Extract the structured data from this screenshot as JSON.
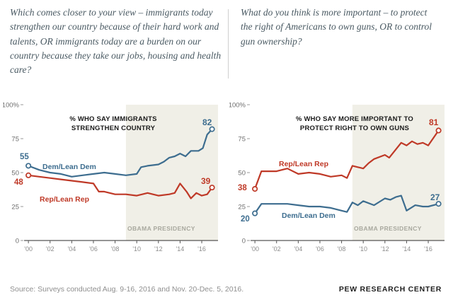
{
  "header": {
    "questions": [
      {
        "text": "Which comes closer to your view – immigrants today strengthen our country because of their hard work and talents, OR immigrants today are a burden on our country because they take our jobs, housing and health care?"
      },
      {
        "text": "What do you think is more important – to protect the right of Americans to own guns, OR to control gun ownership?"
      }
    ]
  },
  "colors": {
    "dem": "#3d6d8f",
    "rep": "#bf3927",
    "shading": "#f0efe7"
  },
  "chart_data": [
    {
      "type": "line",
      "title": "% WHO SAY IMMIGRANTS STRENGTHEN COUNTRY",
      "xlim": [
        1999.6,
        2017.5
      ],
      "ylim": [
        0,
        100
      ],
      "x_ticks": [
        {
          "v": 2000,
          "label": "'00"
        },
        {
          "v": 2002,
          "label": "'02"
        },
        {
          "v": 2004,
          "label": "'04"
        },
        {
          "v": 2006,
          "label": "'06"
        },
        {
          "v": 2008,
          "label": "'08"
        },
        {
          "v": 2010,
          "label": "'10"
        },
        {
          "v": 2012,
          "label": "'12"
        },
        {
          "v": 2014,
          "label": "'14"
        },
        {
          "v": 2016,
          "label": "'16"
        }
      ],
      "y_ticks": [
        {
          "v": 0,
          "label": "0"
        },
        {
          "v": 25,
          "label": "25"
        },
        {
          "v": 50,
          "label": "50"
        },
        {
          "v": 75,
          "label": "75"
        },
        {
          "v": 100,
          "label": "100%"
        }
      ],
      "shaded_region": {
        "label": "OBAMA PRESIDENCY",
        "start": 2009,
        "end": 2017.5
      },
      "grid": false,
      "legend_position": "inline",
      "series": [
        {
          "name": "Dem/Lean Dem",
          "color": "#3d6d8f",
          "start_label": "55",
          "end_label": "82",
          "points": [
            [
              2000,
              55
            ],
            [
              2001,
              52
            ],
            [
              2002,
              50
            ],
            [
              2003,
              49
            ],
            [
              2004,
              47
            ],
            [
              2005,
              48
            ],
            [
              2006,
              49
            ],
            [
              2007,
              50
            ],
            [
              2008,
              49
            ],
            [
              2009,
              48
            ],
            [
              2010,
              49
            ],
            [
              2010.4,
              54
            ],
            [
              2011,
              55
            ],
            [
              2012,
              56
            ],
            [
              2012.5,
              58
            ],
            [
              2013,
              61
            ],
            [
              2013.5,
              62
            ],
            [
              2014,
              64
            ],
            [
              2014.5,
              62
            ],
            [
              2015,
              66
            ],
            [
              2015.7,
              66
            ],
            [
              2016.1,
              68
            ],
            [
              2016.5,
              78
            ],
            [
              2016.95,
              82
            ]
          ]
        },
        {
          "name": "Rep/Lean Rep",
          "color": "#bf3927",
          "start_label": "48",
          "end_label": "39",
          "points": [
            [
              2000,
              48
            ],
            [
              2001,
              47
            ],
            [
              2002,
              46
            ],
            [
              2003,
              45
            ],
            [
              2004,
              44
            ],
            [
              2005,
              43
            ],
            [
              2006,
              42
            ],
            [
              2006.5,
              36
            ],
            [
              2007,
              36
            ],
            [
              2008,
              34
            ],
            [
              2009,
              34
            ],
            [
              2010,
              33
            ],
            [
              2011,
              35
            ],
            [
              2012,
              33
            ],
            [
              2013,
              34
            ],
            [
              2013.5,
              35
            ],
            [
              2014,
              42
            ],
            [
              2014.6,
              36
            ],
            [
              2015,
              31
            ],
            [
              2015.5,
              35
            ],
            [
              2016,
              33
            ],
            [
              2016.5,
              34
            ],
            [
              2016.95,
              39
            ]
          ]
        }
      ]
    },
    {
      "type": "line",
      "title": "% WHO SAY MORE IMPORTANT TO PROTECT RIGHT TO OWN GUNS",
      "xlim": [
        1999.6,
        2017.5
      ],
      "ylim": [
        0,
        100
      ],
      "x_ticks": [
        {
          "v": 2000,
          "label": "'00"
        },
        {
          "v": 2002,
          "label": "'02"
        },
        {
          "v": 2004,
          "label": "'04"
        },
        {
          "v": 2006,
          "label": "'06"
        },
        {
          "v": 2008,
          "label": "'08"
        },
        {
          "v": 2010,
          "label": "'10"
        },
        {
          "v": 2012,
          "label": "'12"
        },
        {
          "v": 2014,
          "label": "'14"
        },
        {
          "v": 2016,
          "label": "'16"
        }
      ],
      "y_ticks": [
        {
          "v": 0,
          "label": "0"
        },
        {
          "v": 25,
          "label": "25"
        },
        {
          "v": 50,
          "label": "50"
        },
        {
          "v": 75,
          "label": "75"
        },
        {
          "v": 100,
          "label": "100%"
        }
      ],
      "shaded_region": {
        "label": "OBAMA PRESIDENCY",
        "start": 2009,
        "end": 2017.5
      },
      "grid": false,
      "legend_position": "inline",
      "series": [
        {
          "name": "Rep/Lean Rep",
          "color": "#bf3927",
          "start_label": "38",
          "end_label": "81",
          "points": [
            [
              2000,
              38
            ],
            [
              2000.6,
              51
            ],
            [
              2001,
              51
            ],
            [
              2002,
              51
            ],
            [
              2003,
              53
            ],
            [
              2004,
              49
            ],
            [
              2005,
              50
            ],
            [
              2006,
              49
            ],
            [
              2007,
              47
            ],
            [
              2008,
              48
            ],
            [
              2008.5,
              46
            ],
            [
              2009,
              55
            ],
            [
              2009.5,
              54
            ],
            [
              2010,
              53
            ],
            [
              2010.5,
              57
            ],
            [
              2011,
              60
            ],
            [
              2012,
              63
            ],
            [
              2012.4,
              61
            ],
            [
              2013,
              67
            ],
            [
              2013.5,
              72
            ],
            [
              2014,
              70
            ],
            [
              2014.5,
              73
            ],
            [
              2015,
              71
            ],
            [
              2015.5,
              72
            ],
            [
              2016,
              70
            ],
            [
              2016.95,
              81
            ]
          ]
        },
        {
          "name": "Dem/Lean Dem",
          "color": "#3d6d8f",
          "start_label": "20",
          "end_label": "27",
          "points": [
            [
              2000,
              20
            ],
            [
              2000.6,
              27
            ],
            [
              2002,
              27
            ],
            [
              2003,
              27
            ],
            [
              2004,
              26
            ],
            [
              2005,
              25
            ],
            [
              2006,
              25
            ],
            [
              2007,
              24
            ],
            [
              2008,
              22
            ],
            [
              2008.5,
              21
            ],
            [
              2009,
              28
            ],
            [
              2009.5,
              26
            ],
            [
              2010,
              29
            ],
            [
              2011,
              26
            ],
            [
              2012,
              31
            ],
            [
              2012.5,
              30
            ],
            [
              2013,
              32
            ],
            [
              2013.5,
              33
            ],
            [
              2014,
              22
            ],
            [
              2014.8,
              26
            ],
            [
              2015.5,
              25
            ],
            [
              2016,
              25
            ],
            [
              2016.95,
              27
            ]
          ]
        }
      ]
    }
  ],
  "footer": {
    "source": "Source: Surveys conducted Aug. 9-16, 2016 and Nov. 20-Dec. 5, 2016.",
    "brand": "PEW RESEARCH CENTER"
  }
}
